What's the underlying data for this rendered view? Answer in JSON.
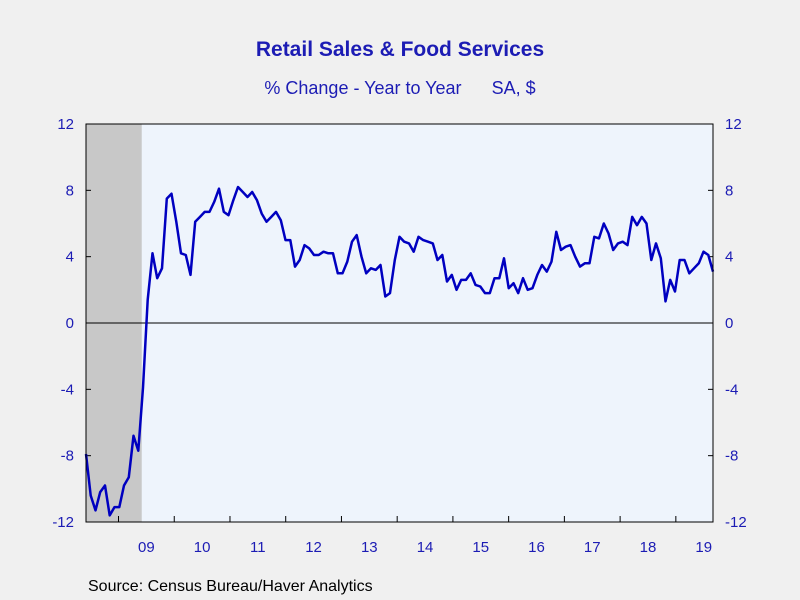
{
  "colors": {
    "text": "#1c1cb4",
    "line": "#0000c0",
    "plot_bg": "#eef4fc",
    "recession": "#c8c8c8",
    "page_bg": "#f0f0f0"
  },
  "chart_data": {
    "type": "line",
    "title": "Retail Sales & Food Services",
    "subtitle_left": "% Change - Year to Year",
    "subtitle_right": "SA, $",
    "source": "Source:  Census Bureau/Haver Analytics",
    "xlabel": "",
    "ylabel": "",
    "ylim": [
      -12,
      12
    ],
    "yticks": [
      12,
      8,
      4,
      0,
      -4,
      -8,
      -12
    ],
    "ytick_labels": [
      "12",
      "8",
      "4",
      "0",
      "-4",
      "-8",
      "-12"
    ],
    "year_labels": [
      "09",
      "10",
      "11",
      "12",
      "13",
      "14",
      "15",
      "16",
      "17",
      "18",
      "19"
    ],
    "zero_line": true,
    "grid": false,
    "legend": "none",
    "recession_shading": {
      "start": "2008-06",
      "end": "2009-06"
    },
    "x_start": "2008-06",
    "x_end": "2019-09",
    "series": [
      {
        "values": [
          -7.9,
          -10.4,
          -11.3,
          -10.2,
          -9.8,
          -11.6,
          -11.1,
          -11.1,
          -9.8,
          -9.3,
          -6.8,
          -7.7,
          -3.9,
          1.4,
          4.2,
          2.7,
          3.3,
          7.5,
          7.8,
          6.1,
          4.2,
          4.1,
          2.9,
          6.1,
          6.4,
          6.7,
          6.7,
          7.3,
          8.1,
          6.7,
          6.5,
          7.4,
          8.2,
          7.9,
          7.6,
          7.9,
          7.4,
          6.6,
          6.1,
          6.4,
          6.7,
          6.2,
          5.0,
          5.0,
          3.4,
          3.8,
          4.7,
          4.5,
          4.1,
          4.1,
          4.3,
          4.2,
          4.2,
          3.0,
          3.0,
          3.7,
          4.9,
          5.3,
          4.0,
          3.0,
          3.3,
          3.2,
          3.5,
          1.6,
          1.8,
          3.8,
          5.2,
          4.9,
          4.8,
          4.3,
          5.2,
          5.0,
          4.9,
          4.8,
          3.8,
          4.1,
          2.5,
          2.9,
          2.0,
          2.6,
          2.6,
          3.0,
          2.3,
          2.2,
          1.8,
          1.8,
          2.7,
          2.7,
          3.9,
          2.1,
          2.4,
          1.8,
          2.7,
          2.0,
          2.1,
          2.9,
          3.5,
          3.1,
          3.7,
          5.5,
          4.4,
          4.6,
          4.7,
          4.0,
          3.4,
          3.6,
          3.6,
          5.2,
          5.1,
          6.0,
          5.4,
          4.4,
          4.8,
          4.9,
          4.7,
          6.4,
          5.9,
          6.4,
          6.0,
          3.8,
          4.8,
          3.9,
          1.3,
          2.6,
          1.9,
          3.8,
          3.8,
          3.0,
          3.3,
          3.6,
          4.3,
          4.1,
          3.1
        ]
      }
    ]
  }
}
